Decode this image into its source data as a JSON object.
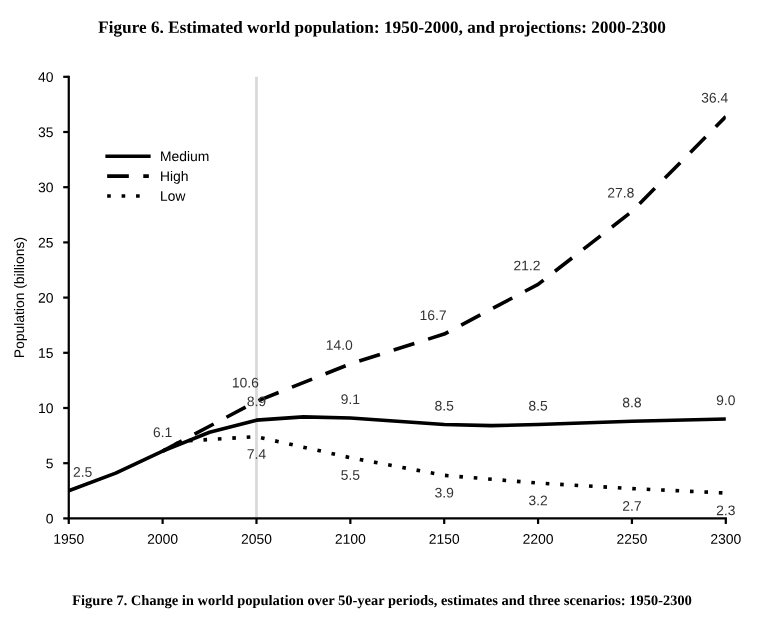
{
  "chart_data": {
    "type": "line",
    "title": "Figure 6. Estimated world population: 1950-2000, and projections: 2000-2300",
    "ylabel": "Population (billions)",
    "annotations": [
      "Figure 7. Change in world population over 50-year periods, estimates and three scenarios: 1950-2300"
    ],
    "xlim": [
      1950,
      2300
    ],
    "xticks": [
      1950,
      2000,
      2050,
      2100,
      2150,
      2200,
      2250,
      2300
    ],
    "ylim": [
      0,
      40
    ],
    "yticks": [
      0,
      5,
      10,
      15,
      20,
      25,
      30,
      35,
      40
    ],
    "grid": false,
    "legend": "top left",
    "ref_lines": [
      {
        "axis": "x",
        "value": 2050,
        "color": "#d9d9d9"
      }
    ],
    "series": [
      {
        "name": "Medium",
        "color": "#000000",
        "line_style": "solid",
        "x": [
          1950,
          1975,
          2000,
          2025,
          2050,
          2075,
          2100,
          2125,
          2150,
          2175,
          2200,
          2250,
          2300
        ],
        "values": [
          2.5,
          4.1,
          6.1,
          7.8,
          8.9,
          9.2,
          9.1,
          8.8,
          8.5,
          8.4,
          8.5,
          8.8,
          9.0
        ],
        "value_labels": [
          "2.5",
          null,
          "6.1",
          null,
          "8.9",
          null,
          "9.1",
          null,
          "8.5",
          null,
          "8.5",
          "8.8",
          "9.0"
        ]
      },
      {
        "name": "High",
        "color": "#000000",
        "line_style": "dashed",
        "x": [
          2000,
          2010,
          2050,
          2100,
          2150,
          2200,
          2250,
          2300
        ],
        "values": [
          6.1,
          7.0,
          10.6,
          14.0,
          16.7,
          21.2,
          27.8,
          36.4
        ],
        "value_labels": [
          null,
          null,
          "10.6",
          "14.0",
          "16.7",
          "21.2",
          "27.8",
          "36.4"
        ]
      },
      {
        "name": "Low",
        "color": "#000000",
        "line_style": "dotted",
        "x": [
          2000,
          2010,
          2050,
          2100,
          2150,
          2200,
          2250,
          2300
        ],
        "values": [
          6.1,
          7.0,
          7.4,
          5.5,
          3.9,
          3.2,
          2.7,
          2.3
        ],
        "value_labels": [
          null,
          null,
          "7.4",
          "5.5",
          "3.9",
          "3.2",
          "2.7",
          "2.3"
        ]
      }
    ]
  }
}
